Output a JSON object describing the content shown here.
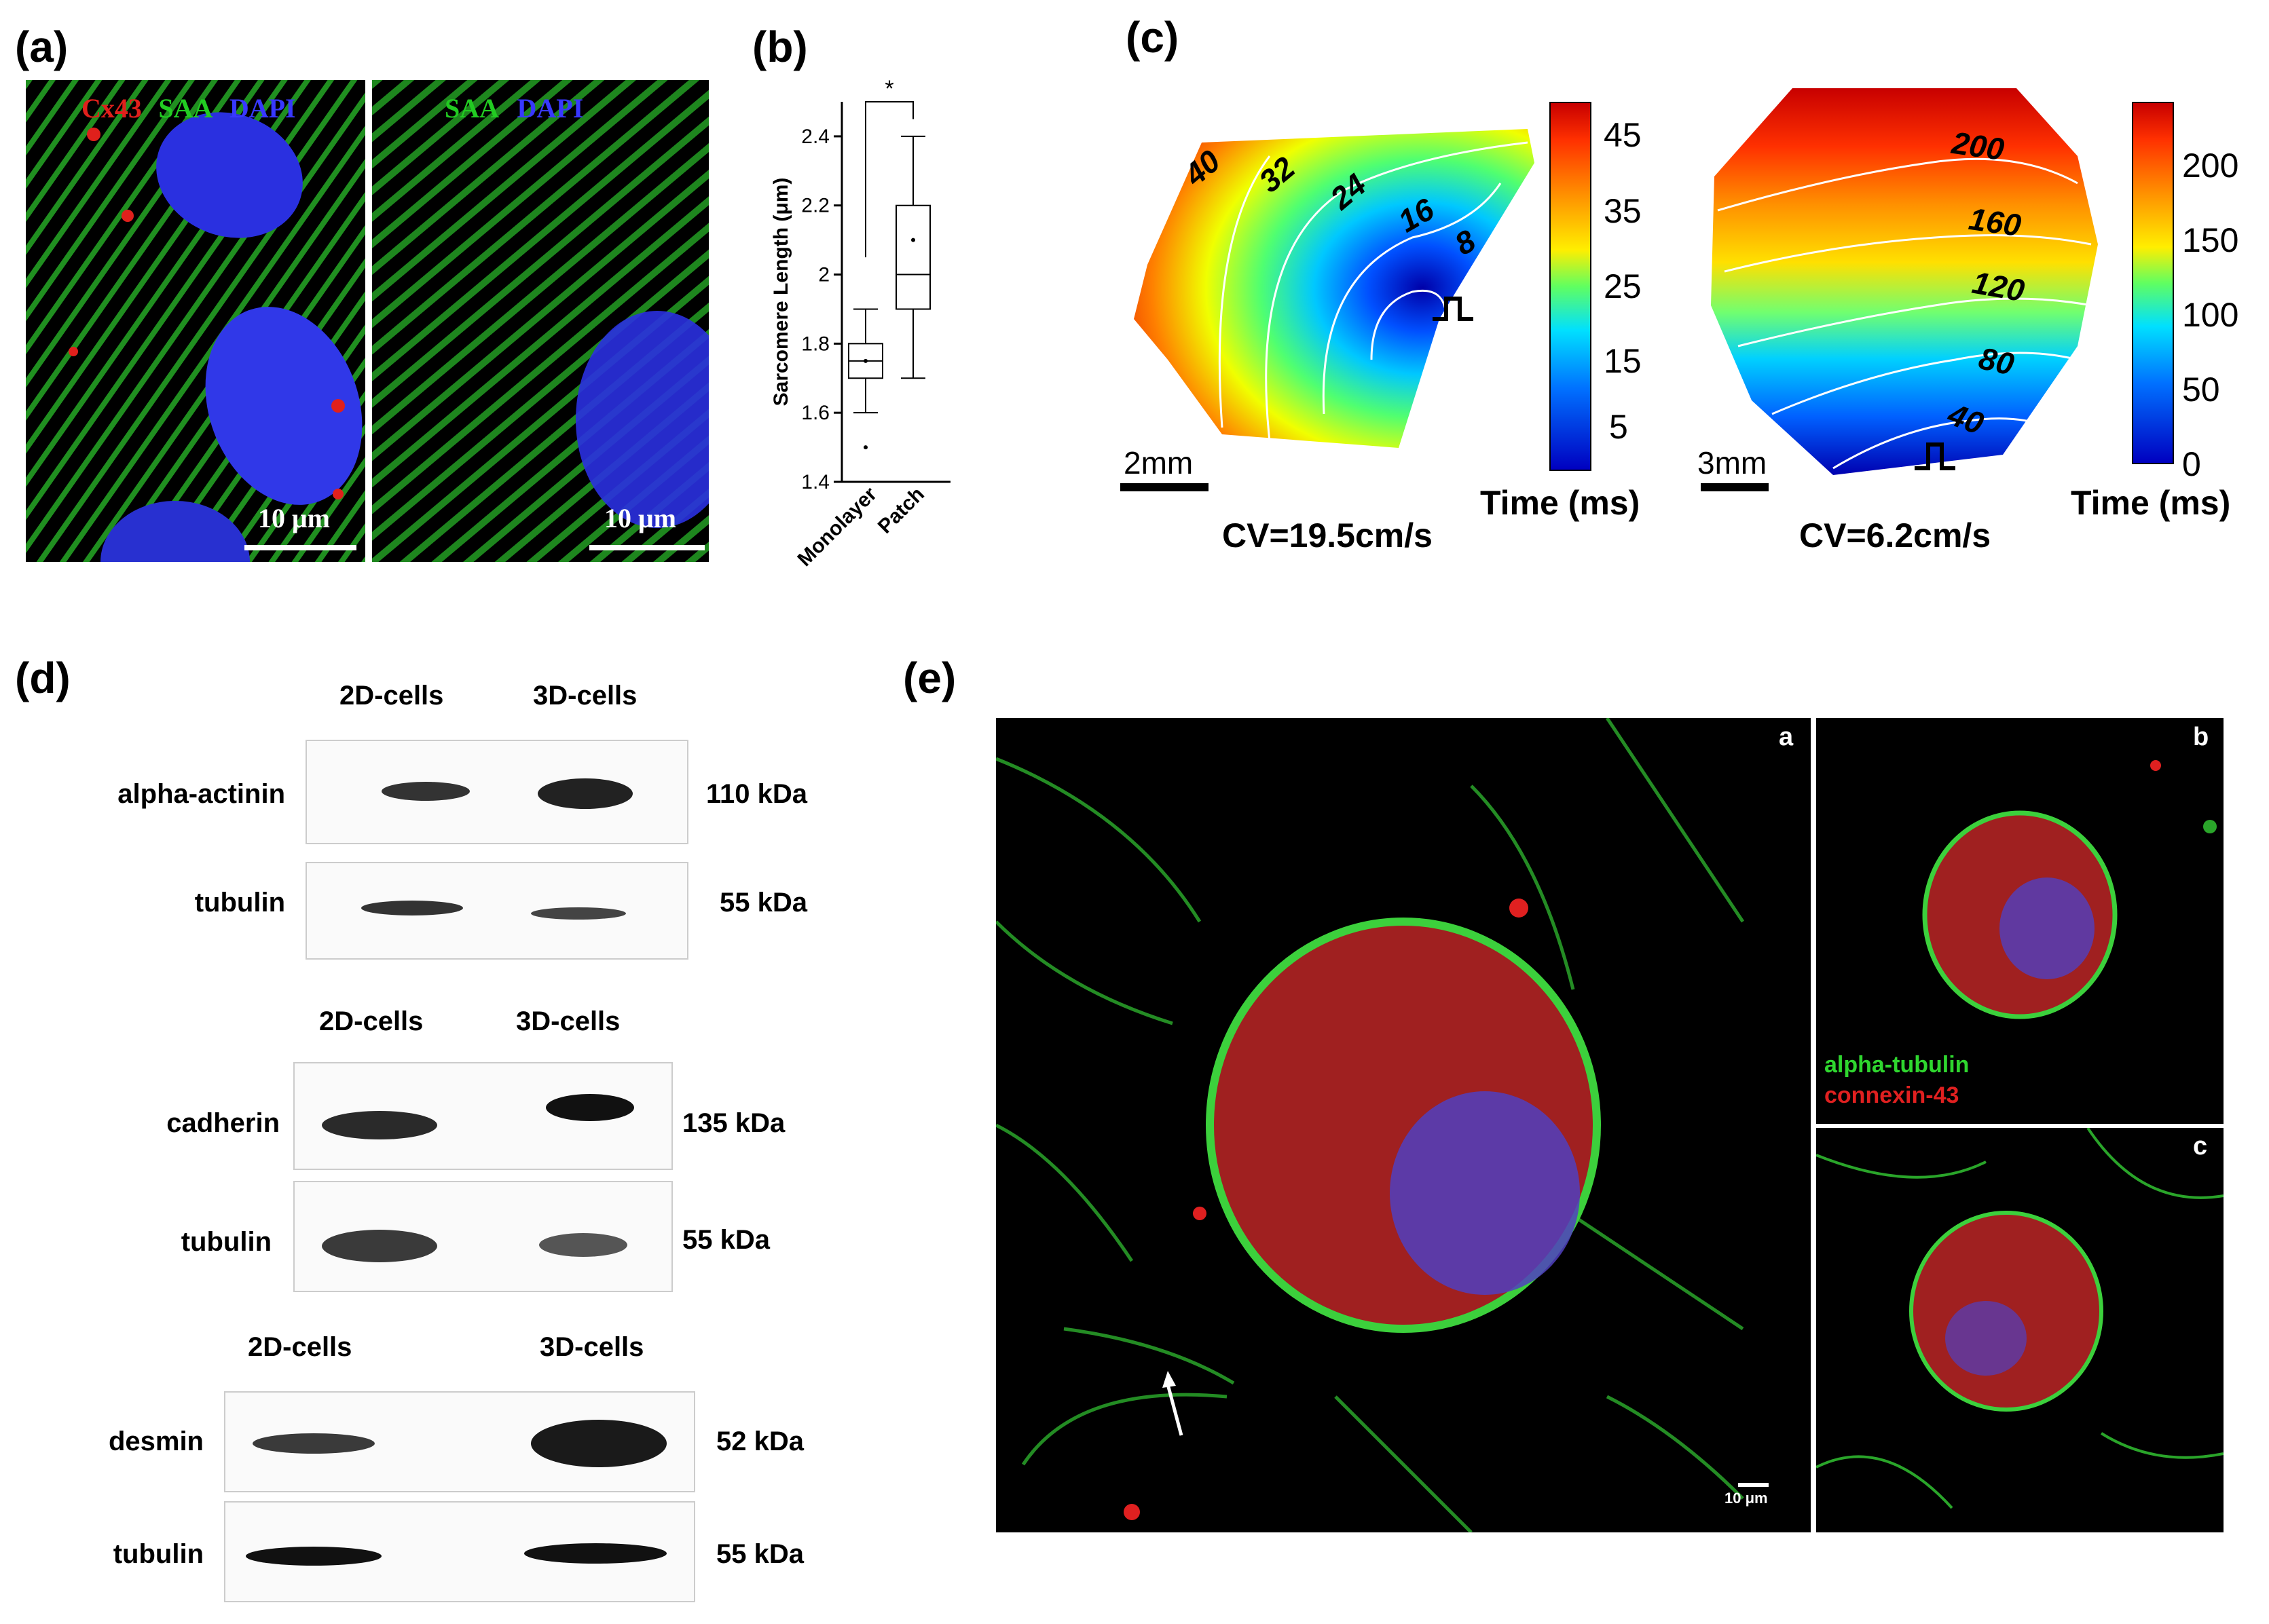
{
  "panels": {
    "a": {
      "label": "(a)",
      "left_stains": [
        {
          "text": "Cx43",
          "color": "#e0201c"
        },
        {
          "text": "SAA",
          "color": "#22cc22"
        },
        {
          "text": "DAPI",
          "color": "#3838ff"
        }
      ],
      "right_stains": [
        {
          "text": "SAA",
          "color": "#22cc22"
        },
        {
          "text": "DAPI",
          "color": "#3838ff"
        }
      ],
      "scale_left": "10 μm",
      "scale_right": "10 μm"
    },
    "b": {
      "label": "(b)",
      "significance": "*"
    },
    "c": {
      "label": "(c)",
      "map1": {
        "scale": "2mm",
        "cv": "CV=19.5cm/s",
        "contours": [
          "40",
          "32",
          "24",
          "16",
          "8"
        ],
        "colorbar_ticks": [
          "45",
          "35",
          "25",
          "15",
          "5"
        ],
        "colorbar_label": "Time (ms)"
      },
      "map2": {
        "scale": "3mm",
        "cv": "CV=6.2cm/s",
        "contours": [
          "200",
          "160",
          "120",
          "80",
          "40"
        ],
        "colorbar_ticks": [
          "200",
          "150",
          "100",
          "50",
          "0"
        ],
        "colorbar_label": "Time (ms)"
      }
    },
    "d": {
      "label": "(d)",
      "groups": [
        {
          "h1": "2D-cells",
          "h2": "3D-cells",
          "rows": [
            {
              "name": "alpha-actinin",
              "kda": "110 kDa"
            },
            {
              "name": "tubulin",
              "kda": "55 kDa"
            }
          ]
        },
        {
          "h1": "2D-cells",
          "h2": "3D-cells",
          "rows": [
            {
              "name": "cadherin",
              "kda": "135 kDa"
            },
            {
              "name": "tubulin",
              "kda": "55 kDa"
            }
          ]
        },
        {
          "h1": "2D-cells",
          "h2": "3D-cells",
          "rows": [
            {
              "name": "desmin",
              "kda": "52 kDa"
            },
            {
              "name": "tubulin",
              "kda": "55 kDa"
            }
          ]
        }
      ]
    },
    "e": {
      "label": "(e)",
      "sub_a": "a",
      "sub_b": "b",
      "sub_c": "c",
      "legend_green": "alpha-tubulin",
      "legend_red": "connexin-43",
      "scale": "10 μm"
    }
  },
  "chart_data": {
    "type": "box",
    "ylabel": "Sarcomere Length (μm)",
    "categories": [
      "Monolayer",
      "Patch"
    ],
    "ylim": [
      1.4,
      2.5
    ],
    "yticks": [
      "1.4",
      "1.6",
      "1.8",
      "2",
      "2.2",
      "2.4"
    ],
    "boxes": [
      {
        "name": "Monolayer",
        "whisker_low": 1.6,
        "q1": 1.7,
        "median": 1.75,
        "q3": 1.8,
        "whisker_high": 1.9,
        "mean": 1.75,
        "outliers": [
          1.5
        ]
      },
      {
        "name": "Patch",
        "whisker_low": 1.7,
        "q1": 1.9,
        "median": 2.0,
        "q3": 2.2,
        "whisker_high": 2.4,
        "mean": 2.1,
        "outliers": []
      }
    ],
    "colors": {
      "box": "#000000"
    }
  }
}
